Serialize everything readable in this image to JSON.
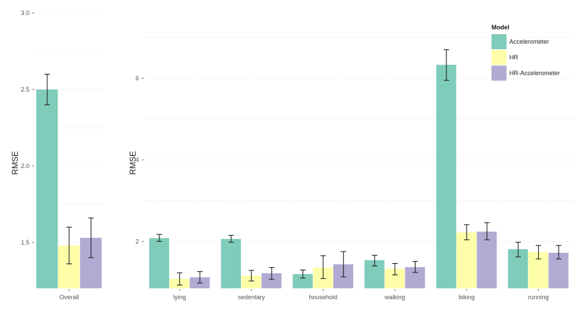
{
  "chart_data": [
    {
      "type": "bar",
      "categories": [
        "Overall"
      ],
      "ylabel": "RMSE",
      "ylim": [
        1.2,
        3.0
      ],
      "yticks": [
        1.5,
        2.0,
        2.5,
        3.0
      ],
      "ytick_labels": [
        "1.5",
        "2.0",
        "2.5",
        "3.0"
      ],
      "grid": true,
      "series": [
        {
          "name": "Accelerometer",
          "values": [
            2.5
          ],
          "err_low": [
            2.4
          ],
          "err_high": [
            2.6
          ]
        },
        {
          "name": "HR",
          "values": [
            1.48
          ],
          "err_low": [
            1.36
          ],
          "err_high": [
            1.6
          ]
        },
        {
          "name": "HR-Accelerometer",
          "values": [
            1.53
          ],
          "err_low": [
            1.4
          ],
          "err_high": [
            1.66
          ]
        }
      ]
    },
    {
      "type": "bar",
      "categories": [
        "lying",
        "sedentary",
        "household",
        "walking",
        "biking",
        "running"
      ],
      "ylabel": "RMSE",
      "ylim": [
        0.85,
        7.6
      ],
      "yticks": [
        2,
        4,
        6
      ],
      "ytick_labels": [
        "2",
        "4",
        "6"
      ],
      "grid": true,
      "legend": {
        "title": "Model",
        "position": "top-right"
      },
      "series": [
        {
          "name": "Accelerometer",
          "values": [
            2.08,
            2.06,
            1.2,
            1.54,
            6.33,
            1.81
          ],
          "err_low": [
            2.0,
            1.98,
            1.1,
            1.4,
            5.95,
            1.62
          ],
          "err_high": [
            2.17,
            2.15,
            1.3,
            1.66,
            6.7,
            1.98
          ]
        },
        {
          "name": "HR",
          "values": [
            1.08,
            1.16,
            1.36,
            1.33,
            2.22,
            1.74
          ],
          "err_low": [
            0.93,
            1.03,
            1.09,
            1.18,
            2.04,
            1.57
          ],
          "err_high": [
            1.23,
            1.29,
            1.65,
            1.46,
            2.41,
            1.9
          ]
        },
        {
          "name": "HR-Accelerometer",
          "values": [
            1.12,
            1.22,
            1.44,
            1.37,
            2.24,
            1.72
          ],
          "err_low": [
            0.98,
            1.07,
            1.13,
            1.24,
            2.04,
            1.57
          ],
          "err_high": [
            1.26,
            1.36,
            1.75,
            1.51,
            2.46,
            1.9
          ]
        }
      ]
    }
  ],
  "legend": {
    "title": "Model",
    "items": [
      "Accelerometer",
      "HR",
      "HR-Accelerometer"
    ]
  },
  "colors": {
    "Accelerometer": "#7fccba",
    "HR": "#fefea8",
    "HR-Accelerometer": "#b1aad3",
    "grid": "#e6e6e6",
    "tick": "#555555",
    "errorbar": "#222222"
  }
}
